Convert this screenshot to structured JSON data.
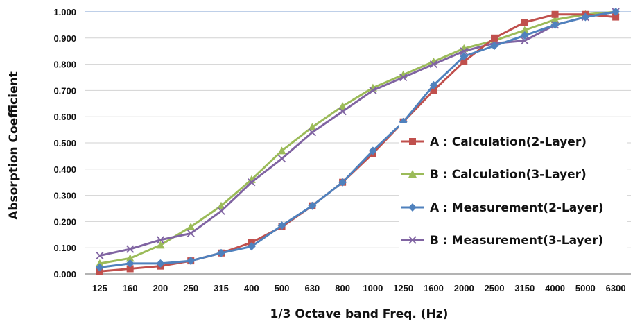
{
  "chart_data": {
    "type": "line",
    "xlabel": "1/3 Octave band Freq. (Hz)",
    "ylabel": "Absorption Coefficient",
    "categories": [
      "125",
      "160",
      "200",
      "250",
      "315",
      "400",
      "500",
      "630",
      "800",
      "1000",
      "1250",
      "1600",
      "2000",
      "2500",
      "3150",
      "4000",
      "5000",
      "6300"
    ],
    "ylim": [
      0,
      1
    ],
    "yticks": [
      "0.000",
      "0.100",
      "0.200",
      "0.300",
      "0.400",
      "0.500",
      "0.600",
      "0.700",
      "0.800",
      "0.900",
      "1.000"
    ],
    "grid": "horizontal",
    "legend_position": "center-right",
    "series": [
      {
        "name": "A : Calculation(2-Layer)",
        "color": "#c0504d",
        "marker": "square",
        "values": [
          0.01,
          0.02,
          0.03,
          0.05,
          0.08,
          0.12,
          0.18,
          0.26,
          0.35,
          0.46,
          0.58,
          0.7,
          0.81,
          0.9,
          0.96,
          0.99,
          0.99,
          0.98
        ]
      },
      {
        "name": "B : Calculation(3-Layer)",
        "color": "#9bbb59",
        "marker": "triangle",
        "values": [
          0.04,
          0.06,
          0.11,
          0.18,
          0.26,
          0.36,
          0.47,
          0.56,
          0.64,
          0.71,
          0.76,
          0.81,
          0.86,
          0.89,
          0.93,
          0.97,
          0.99,
          1.0
        ]
      },
      {
        "name": "A : Measurement(2-Layer)",
        "color": "#4f81bd",
        "marker": "diamond",
        "values": [
          0.025,
          0.04,
          0.04,
          0.05,
          0.08,
          0.105,
          0.185,
          0.26,
          0.35,
          0.47,
          0.58,
          0.72,
          0.83,
          0.87,
          0.91,
          0.95,
          0.98,
          1.0
        ]
      },
      {
        "name": "B : Measurement(3-Layer)",
        "color": "#8064a2",
        "marker": "x",
        "values": [
          0.07,
          0.095,
          0.13,
          0.155,
          0.24,
          0.35,
          0.44,
          0.54,
          0.62,
          0.7,
          0.75,
          0.8,
          0.85,
          0.88,
          0.89,
          0.95,
          0.98,
          1.0
        ]
      }
    ]
  }
}
